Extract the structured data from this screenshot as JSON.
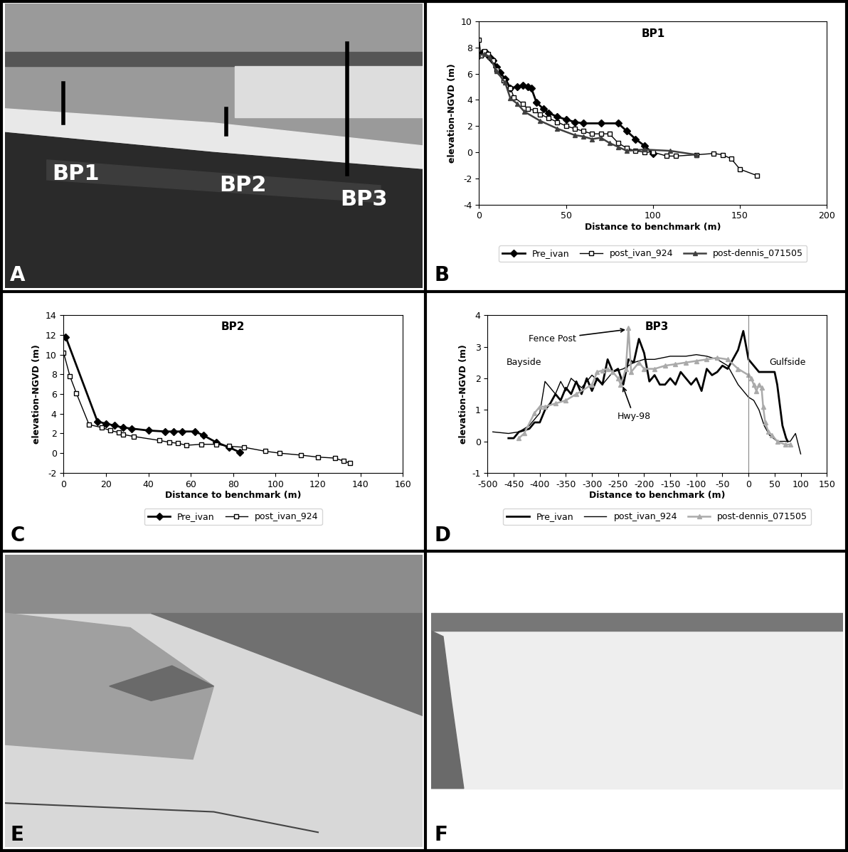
{
  "chart_data": [
    {
      "type": "line",
      "panel": "B",
      "title": "BP1",
      "x_label": "Distance to benchmark (m)",
      "y_label": "elevation-NGVD (m)",
      "xlim": [
        0,
        200
      ],
      "xticks": [
        0,
        50,
        100,
        150,
        200
      ],
      "ylim": [
        -4,
        10
      ],
      "yticks": [
        -4,
        -2,
        0,
        2,
        4,
        6,
        8,
        10
      ],
      "legend": "below",
      "series": [
        {
          "name": "Pre_ivan",
          "color": "#000000",
          "marker": "diamond",
          "line_style": "solid",
          "x": [
            0,
            2,
            4,
            6,
            8,
            10,
            12,
            15,
            18,
            22,
            25,
            28,
            30,
            33,
            37,
            40,
            45,
            50,
            55,
            60,
            70,
            80,
            85,
            90,
            95,
            100
          ],
          "values": [
            7.4,
            7.6,
            7.6,
            7.3,
            7.0,
            6.5,
            6.1,
            5.6,
            4.9,
            5.0,
            5.1,
            5.0,
            4.9,
            3.8,
            3.3,
            3.0,
            2.7,
            2.5,
            2.3,
            2.2,
            2.2,
            2.2,
            1.6,
            1.0,
            0.5,
            -0.1
          ]
        },
        {
          "name": "post_ivan_924",
          "color": "#000000",
          "marker": "open square",
          "line_style": "solid",
          "x": [
            0,
            1,
            3,
            5,
            8,
            10,
            14,
            18,
            20,
            25,
            28,
            32,
            35,
            40,
            45,
            50,
            55,
            60,
            65,
            70,
            75,
            80,
            85,
            90,
            95,
            100,
            108,
            113,
            125,
            135,
            140,
            145,
            150,
            160
          ],
          "values": [
            8.6,
            7.4,
            7.7,
            7.5,
            7.0,
            6.3,
            5.5,
            4.9,
            4.2,
            3.7,
            3.3,
            3.2,
            2.9,
            2.6,
            2.3,
            2.0,
            1.8,
            1.6,
            1.4,
            1.4,
            1.4,
            0.7,
            0.3,
            0.1,
            0.0,
            0.0,
            -0.3,
            -0.3,
            -0.2,
            -0.1,
            -0.2,
            -0.5,
            -1.3,
            -1.8
          ]
        },
        {
          "name": "post-dennis_071505",
          "color": "#404040",
          "marker": "triangle",
          "line_style": "solid",
          "x": [
            0,
            3,
            6,
            10,
            15,
            18,
            22,
            26,
            35,
            45,
            55,
            60,
            65,
            70,
            75,
            80,
            85,
            95,
            110,
            125
          ],
          "values": [
            7.4,
            7.5,
            7.3,
            6.2,
            5.3,
            4.1,
            3.7,
            3.1,
            2.4,
            1.8,
            1.3,
            1.2,
            1.0,
            1.1,
            0.7,
            0.4,
            0.1,
            0.2,
            0.1,
            -0.2
          ]
        }
      ]
    },
    {
      "type": "line",
      "panel": "C",
      "title": "BP2",
      "x_label": "Distance to benchmark (m)",
      "y_label": "elevation-NGVD (m)",
      "xlim": [
        0,
        160
      ],
      "xticks": [
        0,
        20,
        40,
        60,
        80,
        100,
        120,
        140,
        160
      ],
      "ylim": [
        -2,
        14
      ],
      "yticks": [
        -2,
        0,
        2,
        4,
        6,
        8,
        10,
        12,
        14
      ],
      "legend": "below",
      "series": [
        {
          "name": "Pre_ivan",
          "color": "#000000",
          "marker": "diamond",
          "line_style": "solid",
          "x": [
            1,
            16,
            20,
            24,
            28,
            32,
            40,
            48,
            52,
            56,
            62,
            66,
            72,
            78,
            83
          ],
          "values": [
            11.8,
            3.2,
            3.0,
            2.8,
            2.6,
            2.5,
            2.3,
            2.2,
            2.2,
            2.2,
            2.2,
            1.8,
            1.1,
            0.6,
            0.1
          ]
        },
        {
          "name": "post_ivan_924",
          "color": "#000000",
          "marker": "open square",
          "line_style": "solid",
          "x": [
            0,
            3,
            6,
            12,
            18,
            22,
            26,
            28,
            33,
            45,
            50,
            54,
            58,
            65,
            72,
            78,
            85,
            95,
            102,
            112,
            120,
            128,
            132,
            135
          ],
          "values": [
            10.2,
            7.8,
            6.1,
            2.9,
            2.6,
            2.3,
            2.1,
            1.9,
            1.7,
            1.3,
            1.1,
            1.0,
            0.8,
            0.9,
            0.9,
            0.7,
            0.6,
            0.2,
            0.0,
            -0.2,
            -0.4,
            -0.5,
            -0.8,
            -1.0
          ]
        }
      ]
    },
    {
      "type": "line",
      "panel": "D",
      "title": "BP3",
      "x_label": "Distance to benchmark (m)",
      "xlim": [
        -500,
        150
      ],
      "xticks": [
        -500,
        -450,
        -400,
        -350,
        -300,
        -250,
        -200,
        -150,
        -100,
        -50,
        0,
        50,
        100,
        150
      ],
      "ylim": [
        -1,
        4
      ],
      "yticks": [
        -1,
        0,
        1,
        2,
        3,
        4
      ],
      "y_label": "elevation-NGVD (m)",
      "legend": "below",
      "reference_line_x": 0,
      "annotations": [
        {
          "text": "Bayside",
          "x": -430,
          "y": 2.5
        },
        {
          "text": "Gulfside",
          "x": 75,
          "y": 2.5
        },
        {
          "text": "Fence Post",
          "x": -232,
          "y": 3.55
        },
        {
          "text": "Hwy-98",
          "x": -242,
          "y": 1.8
        }
      ],
      "series": [
        {
          "name": "Pre_ivan",
          "color": "#000000",
          "marker": "none",
          "line_style": "solid",
          "x": [
            -460,
            -450,
            -440,
            -420,
            -410,
            -400,
            -390,
            -380,
            -370,
            -360,
            -350,
            -340,
            -330,
            -320,
            -310,
            -300,
            -290,
            -280,
            -270,
            -260,
            -250,
            -240,
            -230,
            -220,
            -210,
            -200,
            -190,
            -180,
            -170,
            -160,
            -150,
            -140,
            -130,
            -120,
            -110,
            -100,
            -90,
            -80,
            -70,
            -60,
            -50,
            -40,
            -30,
            -20,
            -10,
            0,
            10,
            20,
            35,
            50,
            55,
            65,
            72,
            75
          ],
          "values": [
            0.1,
            0.1,
            0.3,
            0.4,
            0.6,
            0.6,
            1.0,
            1.2,
            1.5,
            1.3,
            1.7,
            1.5,
            1.9,
            1.5,
            2.0,
            1.6,
            2.0,
            1.8,
            2.6,
            2.2,
            2.3,
            1.8,
            2.6,
            2.5,
            3.25,
            2.8,
            1.9,
            2.1,
            1.8,
            1.8,
            2.0,
            1.8,
            2.2,
            2.0,
            1.8,
            2.0,
            1.6,
            2.3,
            2.1,
            2.2,
            2.4,
            2.3,
            2.6,
            2.9,
            3.5,
            2.6,
            2.4,
            2.2,
            2.2,
            2.2,
            1.8,
            0.5,
            0.1,
            0.0
          ]
        },
        {
          "name": "post_ivan_924",
          "color": "#000000",
          "marker": "none",
          "line_style": "solid",
          "x": [
            -490,
            -460,
            -440,
            -420,
            -400,
            -390,
            -380,
            -370,
            -360,
            -350,
            -340,
            -320,
            -310,
            -300,
            -280,
            -260,
            -240,
            -220,
            -200,
            -180,
            -150,
            -120,
            -100,
            -80,
            -60,
            -40,
            -20,
            0,
            10,
            20,
            30,
            40,
            55,
            70,
            80,
            90,
            100
          ],
          "values": [
            0.3,
            0.25,
            0.3,
            0.5,
            0.9,
            1.9,
            1.7,
            1.5,
            1.9,
            1.6,
            2.0,
            1.7,
            1.9,
            2.1,
            1.8,
            2.2,
            2.3,
            2.5,
            2.6,
            2.6,
            2.7,
            2.7,
            2.75,
            2.7,
            2.6,
            2.4,
            1.8,
            1.4,
            1.3,
            1.0,
            0.5,
            0.2,
            0.0,
            0.0,
            0.0,
            0.25,
            -0.4
          ]
        },
        {
          "name": "post-dennis_071505",
          "color": "#aaaaaa",
          "marker": "triangle",
          "line_style": "solid",
          "x": [
            -440,
            -430,
            -410,
            -400,
            -390,
            -370,
            -350,
            -330,
            -300,
            -290,
            -280,
            -270,
            -260,
            -250,
            -245,
            -235,
            -230,
            -225,
            -210,
            -200,
            -180,
            -160,
            -140,
            -120,
            -100,
            -80,
            -60,
            -40,
            -20,
            0,
            5,
            10,
            15,
            20,
            25,
            28,
            32,
            38,
            45,
            55,
            70,
            80
          ],
          "values": [
            0.1,
            0.25,
            0.9,
            1.1,
            1.1,
            1.2,
            1.3,
            1.5,
            1.8,
            2.2,
            2.25,
            2.3,
            2.2,
            2.0,
            1.8,
            2.3,
            3.6,
            2.2,
            2.5,
            2.3,
            2.3,
            2.4,
            2.45,
            2.5,
            2.55,
            2.6,
            2.65,
            2.6,
            2.3,
            2.1,
            2.0,
            1.8,
            1.6,
            1.8,
            1.7,
            1.1,
            0.6,
            0.3,
            0.2,
            0.0,
            -0.1,
            -0.1
          ]
        }
      ]
    }
  ],
  "panel_labels": [
    "A",
    "B",
    "C",
    "D",
    "E",
    "F"
  ],
  "photo_labels": {
    "A": [
      "BP1",
      "BP2",
      "BP3"
    ]
  }
}
